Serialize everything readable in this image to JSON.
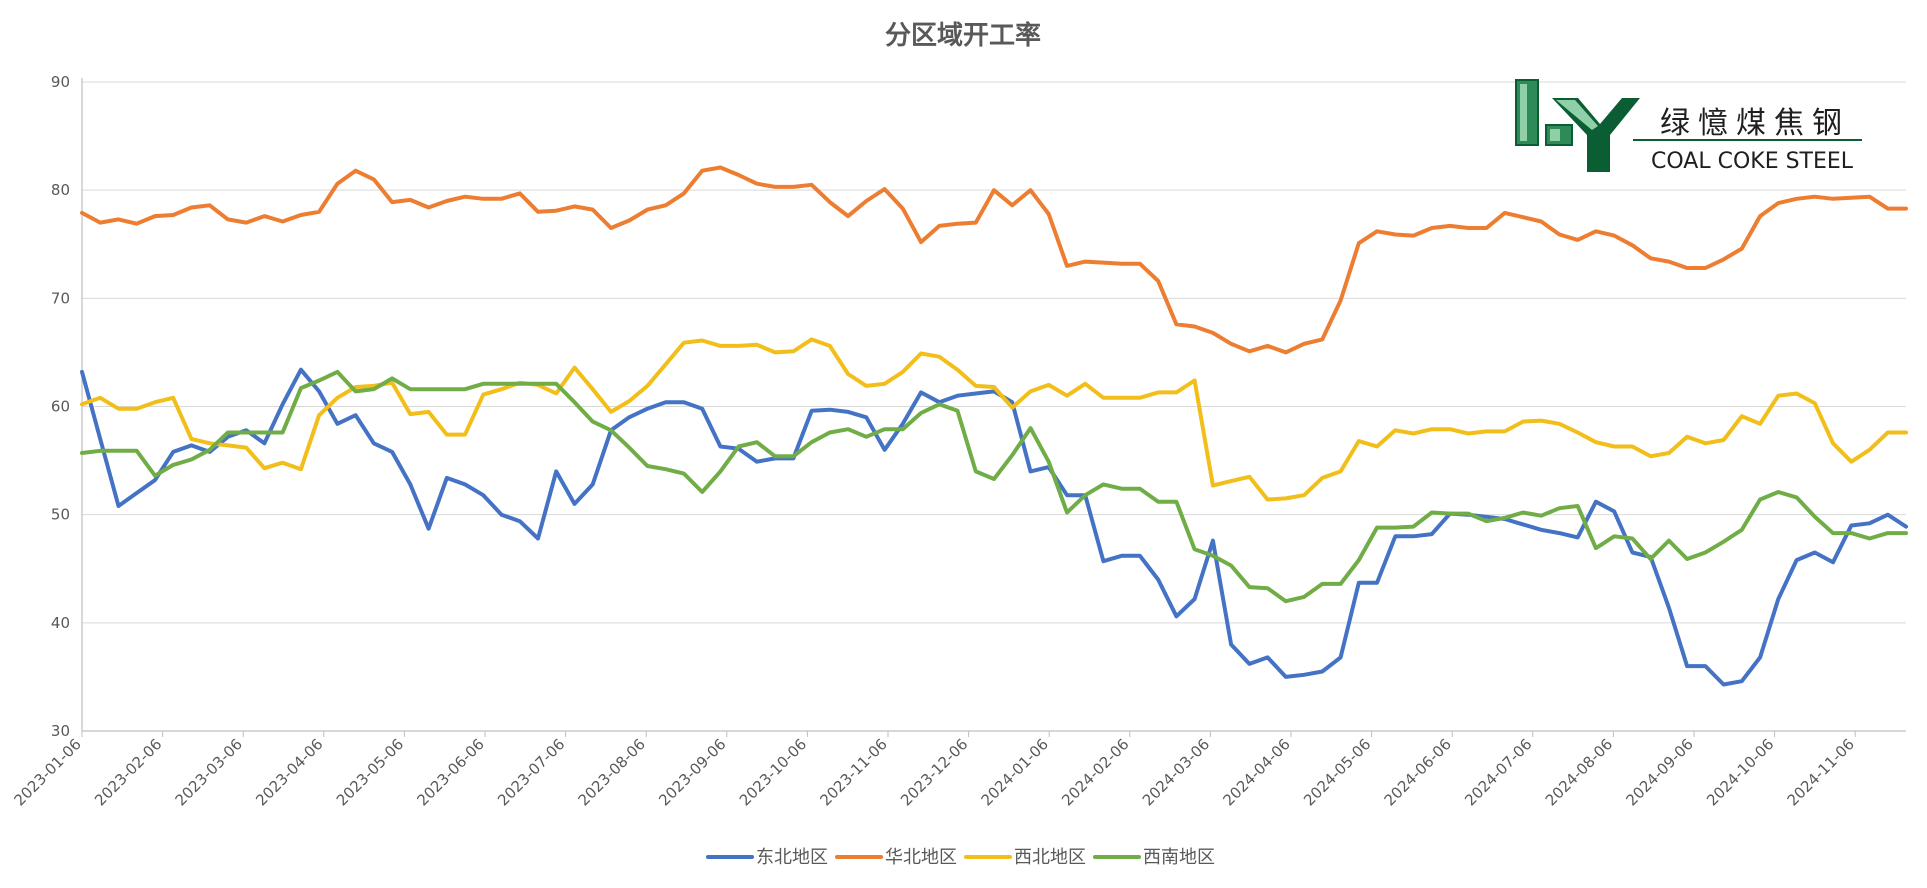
{
  "chart_data": {
    "type": "line",
    "title": "分区域开工率",
    "xlabel": "",
    "ylabel": "",
    "ylim": [
      30,
      90
    ],
    "yticks": [
      30,
      40,
      50,
      60,
      70,
      80,
      90
    ],
    "grid": true,
    "legend_position": "bottom",
    "x_tick_labels": [
      "2023-01-06",
      "2023-02-06",
      "2023-03-06",
      "2023-04-06",
      "2023-05-06",
      "2023-06-06",
      "2023-07-06",
      "2023-08-06",
      "2023-09-06",
      "2023-10-06",
      "2023-11-06",
      "2023-12-06",
      "2024-01-06",
      "2024-02-06",
      "2024-03-06",
      "2024-04-06",
      "2024-05-06",
      "2024-06-06",
      "2024-07-06",
      "2024-08-06",
      "2024-09-06",
      "2024-10-06",
      "2024-11-06"
    ],
    "n_points": 101,
    "series": [
      {
        "name": "东北地区",
        "color": "#4472c4",
        "values": [
          63.2,
          57.0,
          50.8,
          52.0,
          53.2,
          55.8,
          56.4,
          55.8,
          57.2,
          57.8,
          56.6,
          60.2,
          63.4,
          61.4,
          58.4,
          59.2,
          56.6,
          55.8,
          52.8,
          48.7,
          53.4,
          52.8,
          51.8,
          50.0,
          49.4,
          47.8,
          54.0,
          51.0,
          52.8,
          57.8,
          59.0,
          59.8,
          60.4,
          60.4,
          59.8,
          56.3,
          56.1,
          54.9,
          55.2,
          55.2,
          59.6,
          59.7,
          59.5,
          59.0,
          56.0,
          58.4,
          61.3,
          60.4,
          61.0,
          61.2,
          61.4,
          60.4,
          54.0,
          54.4,
          51.8,
          51.8,
          45.7,
          46.2,
          46.2,
          44.0,
          40.6,
          42.2,
          47.6,
          38.0,
          36.2,
          36.8,
          35.0,
          35.2,
          35.5,
          36.8,
          43.7,
          43.7,
          48.0,
          48.0,
          48.2,
          50.1,
          50.0,
          49.8,
          49.6,
          49.1,
          48.6,
          48.3,
          47.9,
          51.2,
          50.3,
          46.5,
          46.1,
          41.4,
          36.0,
          36.0,
          34.3,
          34.6,
          36.8,
          42.2,
          45.8,
          46.5,
          45.6,
          49.0,
          49.2,
          50.0,
          48.9
        ]
      },
      {
        "name": "华北地区",
        "color": "#ed7d31",
        "values": [
          77.9,
          77.0,
          77.3,
          76.9,
          77.6,
          77.7,
          78.4,
          78.6,
          77.3,
          77.0,
          77.6,
          77.1,
          77.7,
          78.0,
          80.6,
          81.8,
          81.0,
          78.9,
          79.1,
          78.4,
          79.0,
          79.4,
          79.2,
          79.2,
          79.7,
          78.0,
          78.1,
          78.5,
          78.2,
          76.5,
          77.2,
          78.2,
          78.6,
          79.7,
          81.8,
          82.1,
          81.4,
          80.6,
          80.3,
          80.3,
          80.5,
          78.9,
          77.6,
          79.0,
          80.1,
          78.3,
          75.2,
          76.7,
          76.9,
          77.0,
          80.0,
          78.6,
          80.0,
          77.8,
          73.0,
          73.4,
          73.3,
          73.2,
          73.2,
          71.6,
          67.6,
          67.4,
          66.8,
          65.8,
          65.1,
          65.6,
          65.0,
          65.8,
          66.2,
          69.8,
          75.1,
          76.2,
          75.9,
          75.8,
          76.5,
          76.7,
          76.5,
          76.5,
          77.9,
          77.5,
          77.1,
          75.9,
          75.4,
          76.2,
          75.8,
          74.9,
          73.7,
          73.4,
          72.8,
          72.8,
          73.6,
          74.6,
          77.6,
          78.8,
          79.2,
          79.4,
          79.2,
          79.3,
          79.4,
          78.3,
          78.3
        ]
      },
      {
        "name": "西北地区",
        "color": "#f2be1a",
        "values": [
          60.2,
          60.8,
          59.8,
          59.8,
          60.4,
          60.8,
          57.0,
          56.6,
          56.4,
          56.2,
          54.3,
          54.8,
          54.2,
          59.2,
          60.8,
          61.8,
          61.9,
          62.2,
          59.3,
          59.5,
          57.4,
          57.4,
          61.1,
          61.6,
          62.2,
          62.0,
          61.2,
          63.6,
          61.6,
          59.5,
          60.5,
          61.9,
          63.9,
          65.9,
          66.1,
          65.6,
          65.6,
          65.7,
          65.0,
          65.1,
          66.2,
          65.6,
          63.0,
          61.9,
          62.1,
          63.2,
          64.9,
          64.6,
          63.4,
          61.9,
          61.8,
          59.9,
          61.4,
          62.0,
          61.0,
          62.1,
          60.8,
          60.8,
          60.8,
          61.3,
          61.3,
          62.4,
          52.7,
          53.1,
          53.5,
          51.4,
          51.5,
          51.8,
          53.4,
          54.0,
          56.8,
          56.3,
          57.8,
          57.5,
          57.9,
          57.9,
          57.5,
          57.7,
          57.7,
          58.6,
          58.7,
          58.4,
          57.6,
          56.7,
          56.3,
          56.3,
          55.4,
          55.7,
          57.2,
          56.6,
          56.9,
          59.1,
          58.4,
          61.0,
          61.2,
          60.3,
          56.6,
          54.9,
          56.0,
          57.6,
          57.6
        ]
      },
      {
        "name": "西南地区",
        "color": "#70ad47",
        "values": [
          55.7,
          55.9,
          55.9,
          55.9,
          53.6,
          54.6,
          55.1,
          56.0,
          57.6,
          57.6,
          57.6,
          57.6,
          61.7,
          62.4,
          63.2,
          61.4,
          61.6,
          62.6,
          61.6,
          61.6,
          61.6,
          61.6,
          62.1,
          62.1,
          62.1,
          62.1,
          62.1,
          60.4,
          58.6,
          57.8,
          56.2,
          54.5,
          54.2,
          53.8,
          52.1,
          54.0,
          56.3,
          56.7,
          55.4,
          55.4,
          56.7,
          57.6,
          57.9,
          57.2,
          57.9,
          57.9,
          59.4,
          60.2,
          59.6,
          54.0,
          53.3,
          55.5,
          58.0,
          54.9,
          50.2,
          51.8,
          52.8,
          52.4,
          52.4,
          51.2,
          51.2,
          46.8,
          46.2,
          45.3,
          43.3,
          43.2,
          42.0,
          42.4,
          43.6,
          43.6,
          45.8,
          48.8,
          48.8,
          48.9,
          50.2,
          50.1,
          50.1,
          49.4,
          49.7,
          50.2,
          49.9,
          50.6,
          50.8,
          46.9,
          48.0,
          47.8,
          45.9,
          47.6,
          45.9,
          46.5,
          47.5,
          48.6,
          51.4,
          52.1,
          51.6,
          49.8,
          48.3,
          48.3,
          47.8,
          48.3,
          48.3
        ]
      }
    ]
  },
  "logo": {
    "cn_text": "绿憶煤焦钢",
    "en_text": "COAL COKE STEEL"
  }
}
